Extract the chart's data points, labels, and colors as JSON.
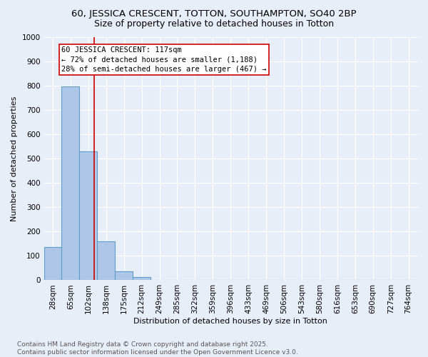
{
  "title": "60, JESSICA CRESCENT, TOTTON, SOUTHAMPTON, SO40 2BP",
  "subtitle": "Size of property relative to detached houses in Totton",
  "xlabel": "Distribution of detached houses by size in Totton",
  "ylabel": "Number of detached properties",
  "categories": [
    "28sqm",
    "65sqm",
    "102sqm",
    "138sqm",
    "175sqm",
    "212sqm",
    "249sqm",
    "285sqm",
    "322sqm",
    "359sqm",
    "396sqm",
    "433sqm",
    "469sqm",
    "506sqm",
    "543sqm",
    "580sqm",
    "616sqm",
    "653sqm",
    "690sqm",
    "727sqm",
    "764sqm"
  ],
  "values": [
    135,
    795,
    530,
    160,
    37,
    12,
    0,
    0,
    0,
    0,
    0,
    0,
    0,
    0,
    0,
    0,
    0,
    0,
    0,
    0,
    0
  ],
  "bar_color": "#aec6e8",
  "bar_edge_color": "#5a9ec9",
  "background_color": "#e8eef8",
  "grid_color": "#ffffff",
  "vline_x": 2.33,
  "vline_color": "#cc0000",
  "annotation_line1": "60 JESSICA CRESCENT: 117sqm",
  "annotation_line2": "← 72% of detached houses are smaller (1,188)",
  "annotation_line3": "28% of semi-detached houses are larger (467) →",
  "ylim": [
    0,
    1000
  ],
  "yticks": [
    0,
    100,
    200,
    300,
    400,
    500,
    600,
    700,
    800,
    900,
    1000
  ],
  "footnote": "Contains HM Land Registry data © Crown copyright and database right 2025.\nContains public sector information licensed under the Open Government Licence v3.0.",
  "title_fontsize": 9.5,
  "subtitle_fontsize": 9,
  "label_fontsize": 8,
  "tick_fontsize": 7.5,
  "annotation_fontsize": 7.5,
  "footnote_fontsize": 6.5
}
